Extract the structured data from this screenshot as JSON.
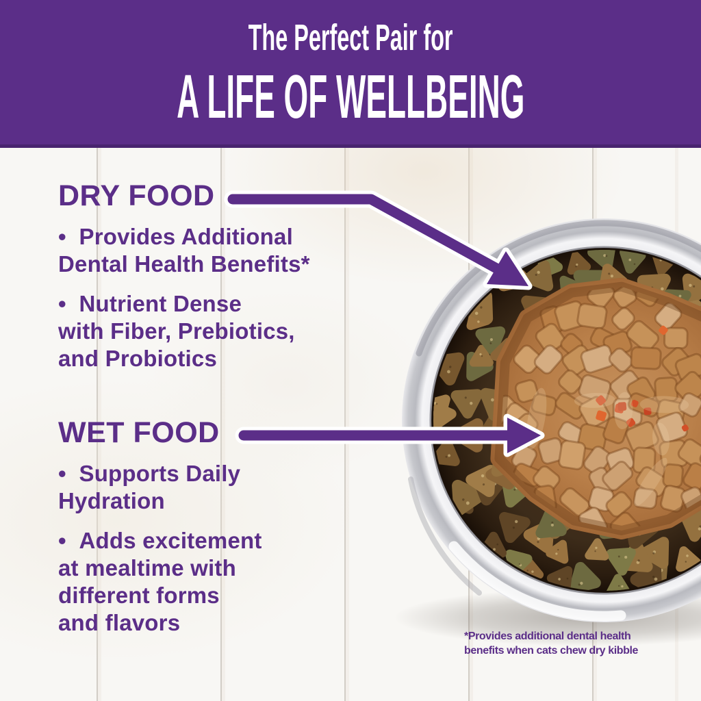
{
  "banner": {
    "subtitle": "The Perfect Pair for",
    "title": "A LIFE OF WELLBEING"
  },
  "dry_food": {
    "heading": "DRY FOOD",
    "bullets": [
      "•  Provides Additional\nDental Health Benefits*",
      "•  Nutrient Dense\nwith Fiber, Prebiotics,\nand Probiotics"
    ]
  },
  "wet_food": {
    "heading": "WET FOOD",
    "bullets": [
      "•  Supports Daily\nHydration",
      "•  Adds excitement\nat mealtime with\ndifferent forms\nand flavors"
    ]
  },
  "footnote": "*Provides additional dental health\nbenefits when cats chew dry kibble",
  "photo": {
    "alt": "Stainless steel bowl filled with dry kibble surrounding wet food chunks in gravy"
  },
  "colors": {
    "brand_purple": "#5b2e88",
    "banner_bottom_edge": "#49246f",
    "arrow_purple": "#5b2e88",
    "background": "#f8f7f4"
  }
}
